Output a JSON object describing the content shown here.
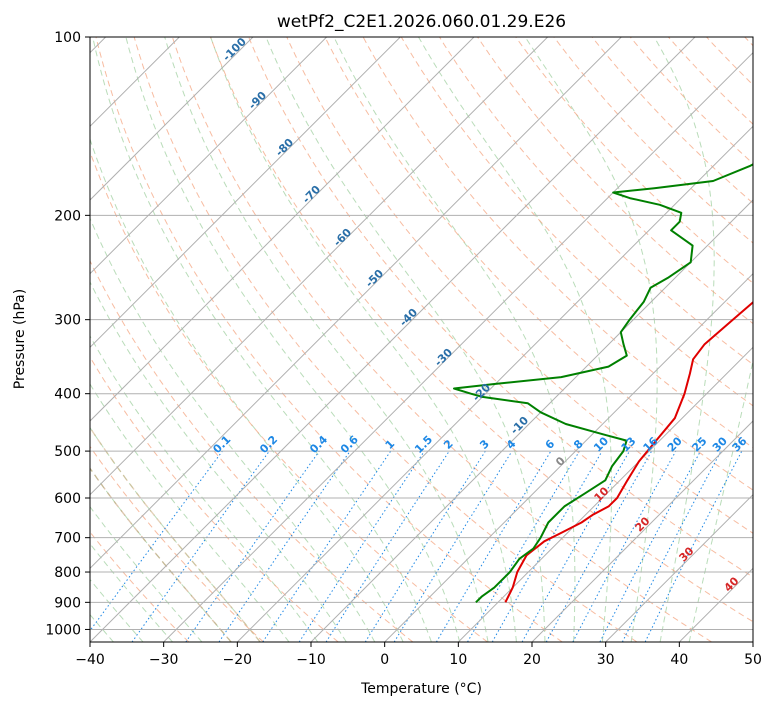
{
  "chart_data": {
    "type": "line",
    "title": "wetPf2_C2E1.2026.060.01.29.E26",
    "xlabel": "Temperature (°C)",
    "ylabel": "Pressure (hPa)",
    "xlim": [
      -40,
      50
    ],
    "ylim": [
      1050,
      100
    ],
    "y_scale": "log",
    "grid": true,
    "x_ticks": [
      -40,
      -30,
      -20,
      -10,
      0,
      10,
      20,
      30,
      40,
      50
    ],
    "y_ticks": [
      100,
      200,
      300,
      400,
      500,
      600,
      700,
      800,
      900,
      1000
    ],
    "series": [
      {
        "color": "#e00000",
        "points": [
          {
            "p": 900,
            "t": 11
          },
          {
            "p": 850,
            "t": 10
          },
          {
            "p": 800,
            "t": 8.5
          },
          {
            "p": 750,
            "t": 7.5
          },
          {
            "p": 710,
            "t": 8
          },
          {
            "p": 690,
            "t": 9
          },
          {
            "p": 660,
            "t": 10.5
          },
          {
            "p": 640,
            "t": 11
          },
          {
            "p": 620,
            "t": 12
          },
          {
            "p": 600,
            "t": 12
          },
          {
            "p": 560,
            "t": 11
          },
          {
            "p": 520,
            "t": 10
          },
          {
            "p": 480,
            "t": 9.5
          },
          {
            "p": 440,
            "t": 9
          },
          {
            "p": 400,
            "t": 7
          },
          {
            "p": 370,
            "t": 5
          },
          {
            "p": 350,
            "t": 3.5
          },
          {
            "p": 330,
            "t": 3
          },
          {
            "p": 300,
            "t": 3.5
          },
          {
            "p": 275,
            "t": 4
          },
          {
            "p": 250,
            "t": 4
          },
          {
            "p": 230,
            "t": 5
          },
          {
            "p": 210,
            "t": 6.5
          },
          {
            "p": 195,
            "t": 7.5
          },
          {
            "p": 180,
            "t": 8.5
          },
          {
            "p": 165,
            "t": 9
          },
          {
            "p": 150,
            "t": 9.5
          },
          {
            "p": 140,
            "t": 10
          },
          {
            "p": 130,
            "t": 11
          },
          {
            "p": 120,
            "t": 13
          },
          {
            "p": 110,
            "t": 15
          },
          {
            "p": 100,
            "t": 15.5
          }
        ]
      },
      {
        "color": "#008000",
        "points": [
          {
            "p": 900,
            "t": 7
          },
          {
            "p": 880,
            "t": 7
          },
          {
            "p": 850,
            "t": 7.5
          },
          {
            "p": 800,
            "t": 7.5
          },
          {
            "p": 760,
            "t": 7
          },
          {
            "p": 730,
            "t": 7.5
          },
          {
            "p": 700,
            "t": 7
          },
          {
            "p": 660,
            "t": 6
          },
          {
            "p": 620,
            "t": 6
          },
          {
            "p": 590,
            "t": 7
          },
          {
            "p": 560,
            "t": 8
          },
          {
            "p": 530,
            "t": 7
          },
          {
            "p": 500,
            "t": 6.5
          },
          {
            "p": 480,
            "t": 5.5
          },
          {
            "p": 470,
            "t": 2
          },
          {
            "p": 450,
            "t": -5
          },
          {
            "p": 430,
            "t": -10
          },
          {
            "p": 415,
            "t": -13
          },
          {
            "p": 405,
            "t": -20
          },
          {
            "p": 400,
            "t": -22
          },
          {
            "p": 392,
            "t": -25
          },
          {
            "p": 385,
            "t": -20
          },
          {
            "p": 375,
            "t": -12
          },
          {
            "p": 360,
            "t": -7
          },
          {
            "p": 345,
            "t": -6
          },
          {
            "p": 330,
            "t": -8
          },
          {
            "p": 315,
            "t": -10
          },
          {
            "p": 300,
            "t": -10.5
          },
          {
            "p": 280,
            "t": -11
          },
          {
            "p": 265,
            "t": -12
          },
          {
            "p": 255,
            "t": -11
          },
          {
            "p": 240,
            "t": -10
          },
          {
            "p": 225,
            "t": -12
          },
          {
            "p": 212,
            "t": -17
          },
          {
            "p": 205,
            "t": -17
          },
          {
            "p": 198,
            "t": -18
          },
          {
            "p": 192,
            "t": -22
          },
          {
            "p": 187,
            "t": -27
          },
          {
            "p": 183,
            "t": -30
          },
          {
            "p": 180,
            "t": -25
          },
          {
            "p": 175,
            "t": -18
          },
          {
            "p": 165,
            "t": -15
          },
          {
            "p": 155,
            "t": -13
          },
          {
            "p": 145,
            "t": -11
          },
          {
            "p": 138,
            "t": -9
          },
          {
            "p": 132,
            "t": -7
          },
          {
            "p": 125,
            "t": -6
          },
          {
            "p": 115,
            "t": -5
          },
          {
            "p": 108,
            "t": -3
          },
          {
            "p": 100,
            "t": -1
          }
        ]
      }
    ],
    "dry_adiabat_labels": [
      "-100",
      "-90",
      "-80",
      "-70",
      "-60",
      "-50",
      "-40",
      "-30",
      "-20",
      "-10"
    ],
    "mixing_ratio_labels": [
      "0.1",
      "0.2",
      "0.4",
      "0.6",
      "1",
      "1.5",
      "2",
      "3",
      "4",
      "6",
      "8",
      "10",
      "13",
      "16",
      "20",
      "25",
      "30",
      "36"
    ],
    "moist_adiabat_labels": [
      "0",
      "10",
      "20",
      "30",
      "40"
    ]
  }
}
